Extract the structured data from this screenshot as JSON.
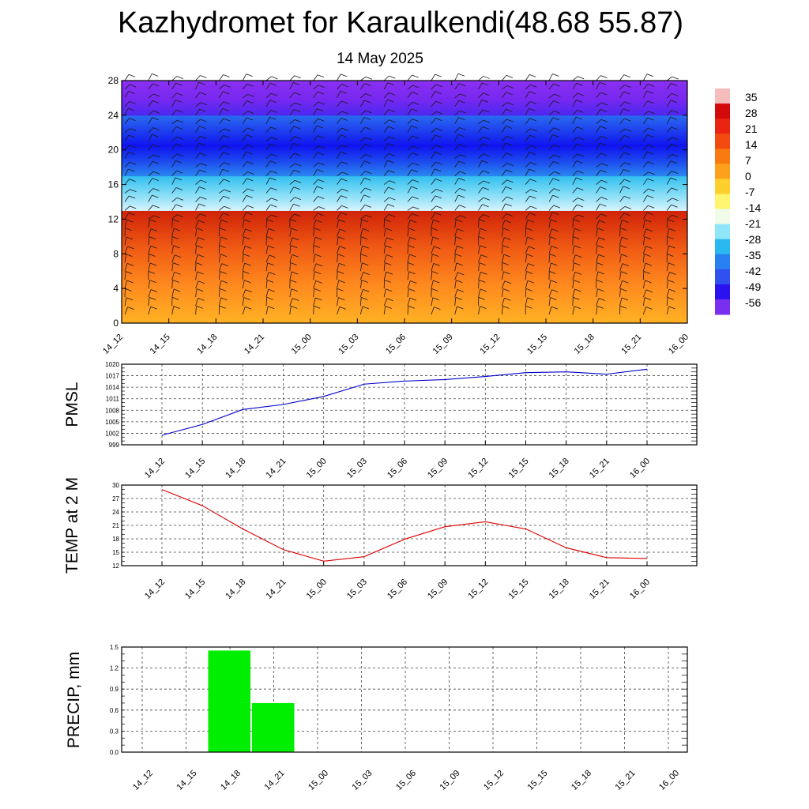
{
  "header": {
    "title": "Kazhydromet for Karaulkendi(48.68 55.87)",
    "subtitle": "14 May 2025"
  },
  "chart_data": [
    {
      "type": "heatmap",
      "name": "cross-section",
      "x": [
        "14_12",
        "14_15",
        "14_18",
        "14_21",
        "15_00",
        "15_03",
        "15_06",
        "15_09",
        "15_12",
        "15_15",
        "15_18",
        "15_21",
        "16_00"
      ],
      "yticks": [
        0,
        4,
        8,
        12,
        16,
        20,
        24,
        28
      ],
      "ylim": [
        0,
        28
      ],
      "colorbar": {
        "labels": [
          "35",
          "28",
          "21",
          "14",
          "7",
          "0",
          "-7",
          "-14",
          "-21",
          "-28",
          "-35",
          "-42",
          "-49",
          "-56"
        ],
        "colors": [
          "#f5bcbc",
          "#d40a0a",
          "#ea2410",
          "#f24a10",
          "#fa7a12",
          "#fda11c",
          "#fed02e",
          "#fff570",
          "#f0fce8",
          "#8ee6f8",
          "#2ab8f0",
          "#2880f0",
          "#3050f0",
          "#2a12f0",
          "#7a2ef0"
        ]
      },
      "bands": [
        {
          "y": [
            0,
            13
          ],
          "colors": [
            "#ffb224",
            "#ff8a1e",
            "#f05a14",
            "#d02208"
          ]
        },
        {
          "y": [
            13,
            17
          ],
          "colors": [
            "#d8f2fc",
            "#80dcf6",
            "#30bef0"
          ]
        },
        {
          "y": [
            17,
            24
          ],
          "colors": [
            "#2a88f0",
            "#1c48ee",
            "#1014f0",
            "#1e40ee",
            "#2a6cf0"
          ]
        },
        {
          "y": [
            24,
            28
          ],
          "colors": [
            "#4c28f0",
            "#7a28f0",
            "#8a30f2"
          ]
        }
      ]
    },
    {
      "type": "line",
      "name": "pmsl",
      "ylabel": "PMSL",
      "x": [
        "14_12",
        "14_15",
        "14_18",
        "14_21",
        "15_00",
        "15_03",
        "15_06",
        "15_09",
        "15_12",
        "15_15",
        "15_18",
        "15_21",
        "16_00"
      ],
      "values": [
        1001.5,
        1004.3,
        1008.2,
        1009.5,
        1011.6,
        1014.8,
        1015.6,
        1016.0,
        1016.8,
        1017.8,
        1018.0,
        1017.4,
        1018.7
      ],
      "yticks": [
        999,
        1002,
        1005,
        1008,
        1011,
        1014,
        1017,
        1020
      ],
      "ylim": [
        999,
        1020
      ],
      "color": "#0000cc"
    },
    {
      "type": "line",
      "name": "temp",
      "ylabel": "TEMP at 2 M",
      "x": [
        "14_12",
        "14_15",
        "14_18",
        "14_21",
        "15_00",
        "15_03",
        "15_06",
        "15_09",
        "15_12",
        "15_15",
        "15_18",
        "15_21",
        "16_00"
      ],
      "values": [
        29.0,
        25.4,
        20.2,
        15.6,
        13.0,
        14.0,
        17.9,
        20.7,
        21.8,
        20.2,
        16.0,
        13.8,
        13.6
      ],
      "yticks": [
        12,
        15,
        18,
        21,
        24,
        27,
        30
      ],
      "ylim": [
        12,
        30
      ],
      "color": "#dd0000"
    },
    {
      "type": "bar",
      "name": "precip",
      "ylabel": "PRECIP, mm",
      "x": [
        "14_12",
        "14_15",
        "14_18",
        "14_21",
        "15_00",
        "15_03",
        "15_06",
        "15_09",
        "15_12",
        "15_15",
        "15_18",
        "15_21",
        "16_00"
      ],
      "values": [
        0,
        0,
        1.45,
        0.7,
        0,
        0,
        0,
        0,
        0,
        0,
        0,
        0,
        0
      ],
      "yticks": [
        "0.0",
        "0.3",
        "0.6",
        "0.9",
        "1.2",
        "1.5"
      ],
      "ylim": [
        0,
        1.5
      ],
      "color": "#00ee00"
    }
  ]
}
